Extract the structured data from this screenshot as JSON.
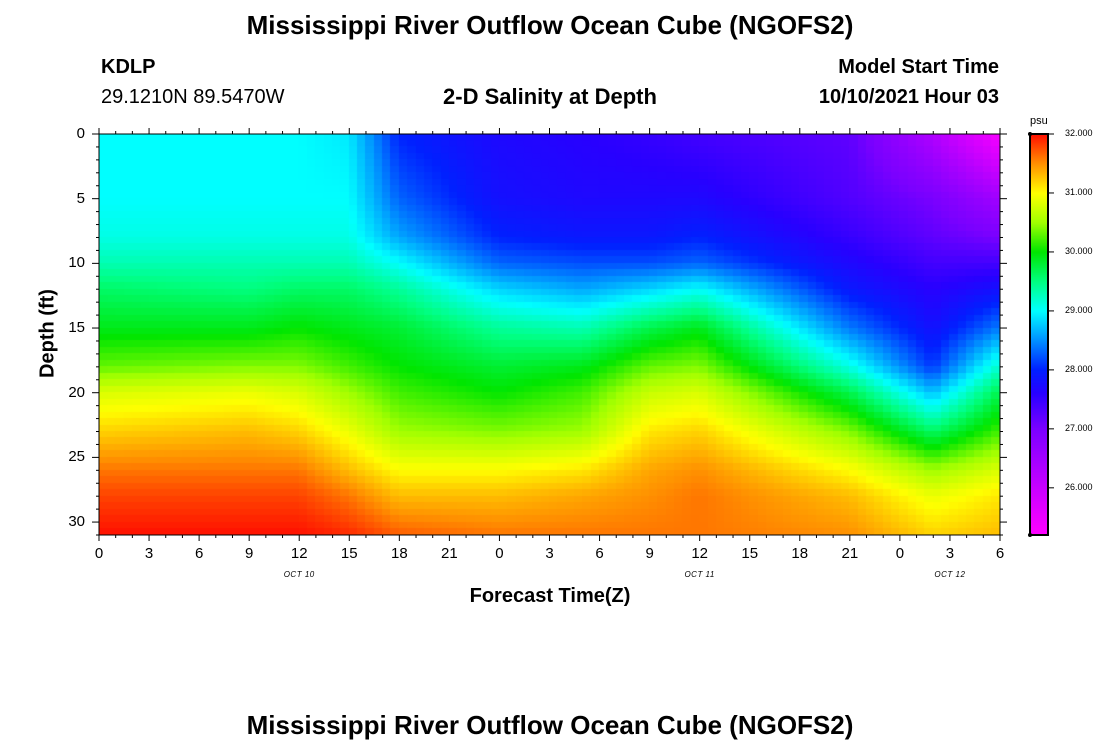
{
  "header": {
    "title_top": "Mississippi River Outflow Ocean Cube (NGOFS2)",
    "title_bottom": "Mississippi River Outflow Ocean Cube (NGOFS2)",
    "station": "KDLP",
    "coords": "29.1210N  89.5470W",
    "subtitle": "2-D Salinity at Depth",
    "model_label": "Model Start Time",
    "model_time": "10/10/2021 Hour 03"
  },
  "chart_data": {
    "type": "heatmap",
    "title": "2-D Salinity at Depth",
    "xlabel": "Forecast Time(Z)",
    "ylabel": "Depth (ft)",
    "x_ticks": [
      "0",
      "3",
      "6",
      "9",
      "12",
      "15",
      "18",
      "21",
      "0",
      "3",
      "6",
      "9",
      "12",
      "15",
      "18",
      "21",
      "0",
      "3",
      "6"
    ],
    "x_range_hours": [
      0,
      54
    ],
    "date_labels": [
      {
        "label": "OCT 10",
        "hour": 12
      },
      {
        "label": "OCT 11",
        "hour": 36
      },
      {
        "label": "OCT 12",
        "hour": 51
      }
    ],
    "y_ticks": [
      "0",
      "5",
      "10",
      "15",
      "20",
      "25",
      "30"
    ],
    "ylim": [
      0,
      31
    ],
    "y_inverted": true,
    "colorbar": {
      "unit": "psu",
      "min": 25.2,
      "max": 32.0,
      "ticks": [
        "32.000",
        "31.000",
        "30.000",
        "29.000",
        "28.000",
        "27.000",
        "26.000"
      ],
      "tick_values": [
        32,
        31,
        30,
        29,
        28,
        27,
        26
      ],
      "colors": [
        {
          "v": 25.2,
          "c": "#ff00ff"
        },
        {
          "v": 26.0,
          "c": "#c800ff"
        },
        {
          "v": 27.0,
          "c": "#7a00ff"
        },
        {
          "v": 27.6,
          "c": "#2800ff"
        },
        {
          "v": 28.0,
          "c": "#0020ff"
        },
        {
          "v": 28.5,
          "c": "#0090ff"
        },
        {
          "v": 29.0,
          "c": "#00ffff"
        },
        {
          "v": 29.5,
          "c": "#00ff80"
        },
        {
          "v": 30.0,
          "c": "#00e600"
        },
        {
          "v": 30.5,
          "c": "#a0ff00"
        },
        {
          "v": 31.0,
          "c": "#ffff00"
        },
        {
          "v": 31.5,
          "c": "#ff9000"
        },
        {
          "v": 32.0,
          "c": "#ff1000"
        }
      ]
    },
    "profile_hours": [
      0,
      9,
      12,
      15,
      18,
      24,
      29,
      33,
      36,
      45,
      50,
      54
    ],
    "profile_depths": [
      0,
      5,
      8,
      10,
      12,
      15,
      18,
      20,
      23,
      26,
      28,
      31
    ],
    "profile_values": [
      [
        29.0,
        29.0,
        29.1,
        29.3,
        29.6,
        29.9,
        30.3,
        30.8,
        31.2,
        31.6,
        31.8,
        32.0
      ],
      [
        29.0,
        29.0,
        29.1,
        29.3,
        29.5,
        29.9,
        30.4,
        30.9,
        31.3,
        31.6,
        31.8,
        32.0
      ],
      [
        29.0,
        29.0,
        29.1,
        29.3,
        29.6,
        30.0,
        30.4,
        30.8,
        31.2,
        31.6,
        31.8,
        32.0
      ],
      [
        28.9,
        29.0,
        29.1,
        29.3,
        29.6,
        29.9,
        30.2,
        30.5,
        30.9,
        31.3,
        31.6,
        31.9
      ],
      [
        28.0,
        28.3,
        28.6,
        29.0,
        29.4,
        29.8,
        30.0,
        30.2,
        30.5,
        31.0,
        31.3,
        31.7
      ],
      [
        27.7,
        27.8,
        28.0,
        28.3,
        28.8,
        29.4,
        29.8,
        30.0,
        30.4,
        31.0,
        31.3,
        31.6
      ],
      [
        27.6,
        27.7,
        27.9,
        28.2,
        28.6,
        29.3,
        29.9,
        30.2,
        30.5,
        31.1,
        31.4,
        31.6
      ],
      [
        27.5,
        27.7,
        27.9,
        28.2,
        28.8,
        29.7,
        30.3,
        30.7,
        31.1,
        31.4,
        31.5,
        31.6
      ],
      [
        27.4,
        27.7,
        28.0,
        28.3,
        29.0,
        29.9,
        30.4,
        30.8,
        31.2,
        31.5,
        31.6,
        31.6
      ],
      [
        27.2,
        27.3,
        27.5,
        27.7,
        27.9,
        28.4,
        29.1,
        29.7,
        30.4,
        31.0,
        31.3,
        31.5
      ],
      [
        26.3,
        27.0,
        27.2,
        27.4,
        27.6,
        27.8,
        28.1,
        28.7,
        29.6,
        30.5,
        30.9,
        31.2
      ],
      [
        25.3,
        26.5,
        27.0,
        27.4,
        27.8,
        28.4,
        29.2,
        29.7,
        30.2,
        30.8,
        31.1,
        31.3
      ]
    ]
  }
}
